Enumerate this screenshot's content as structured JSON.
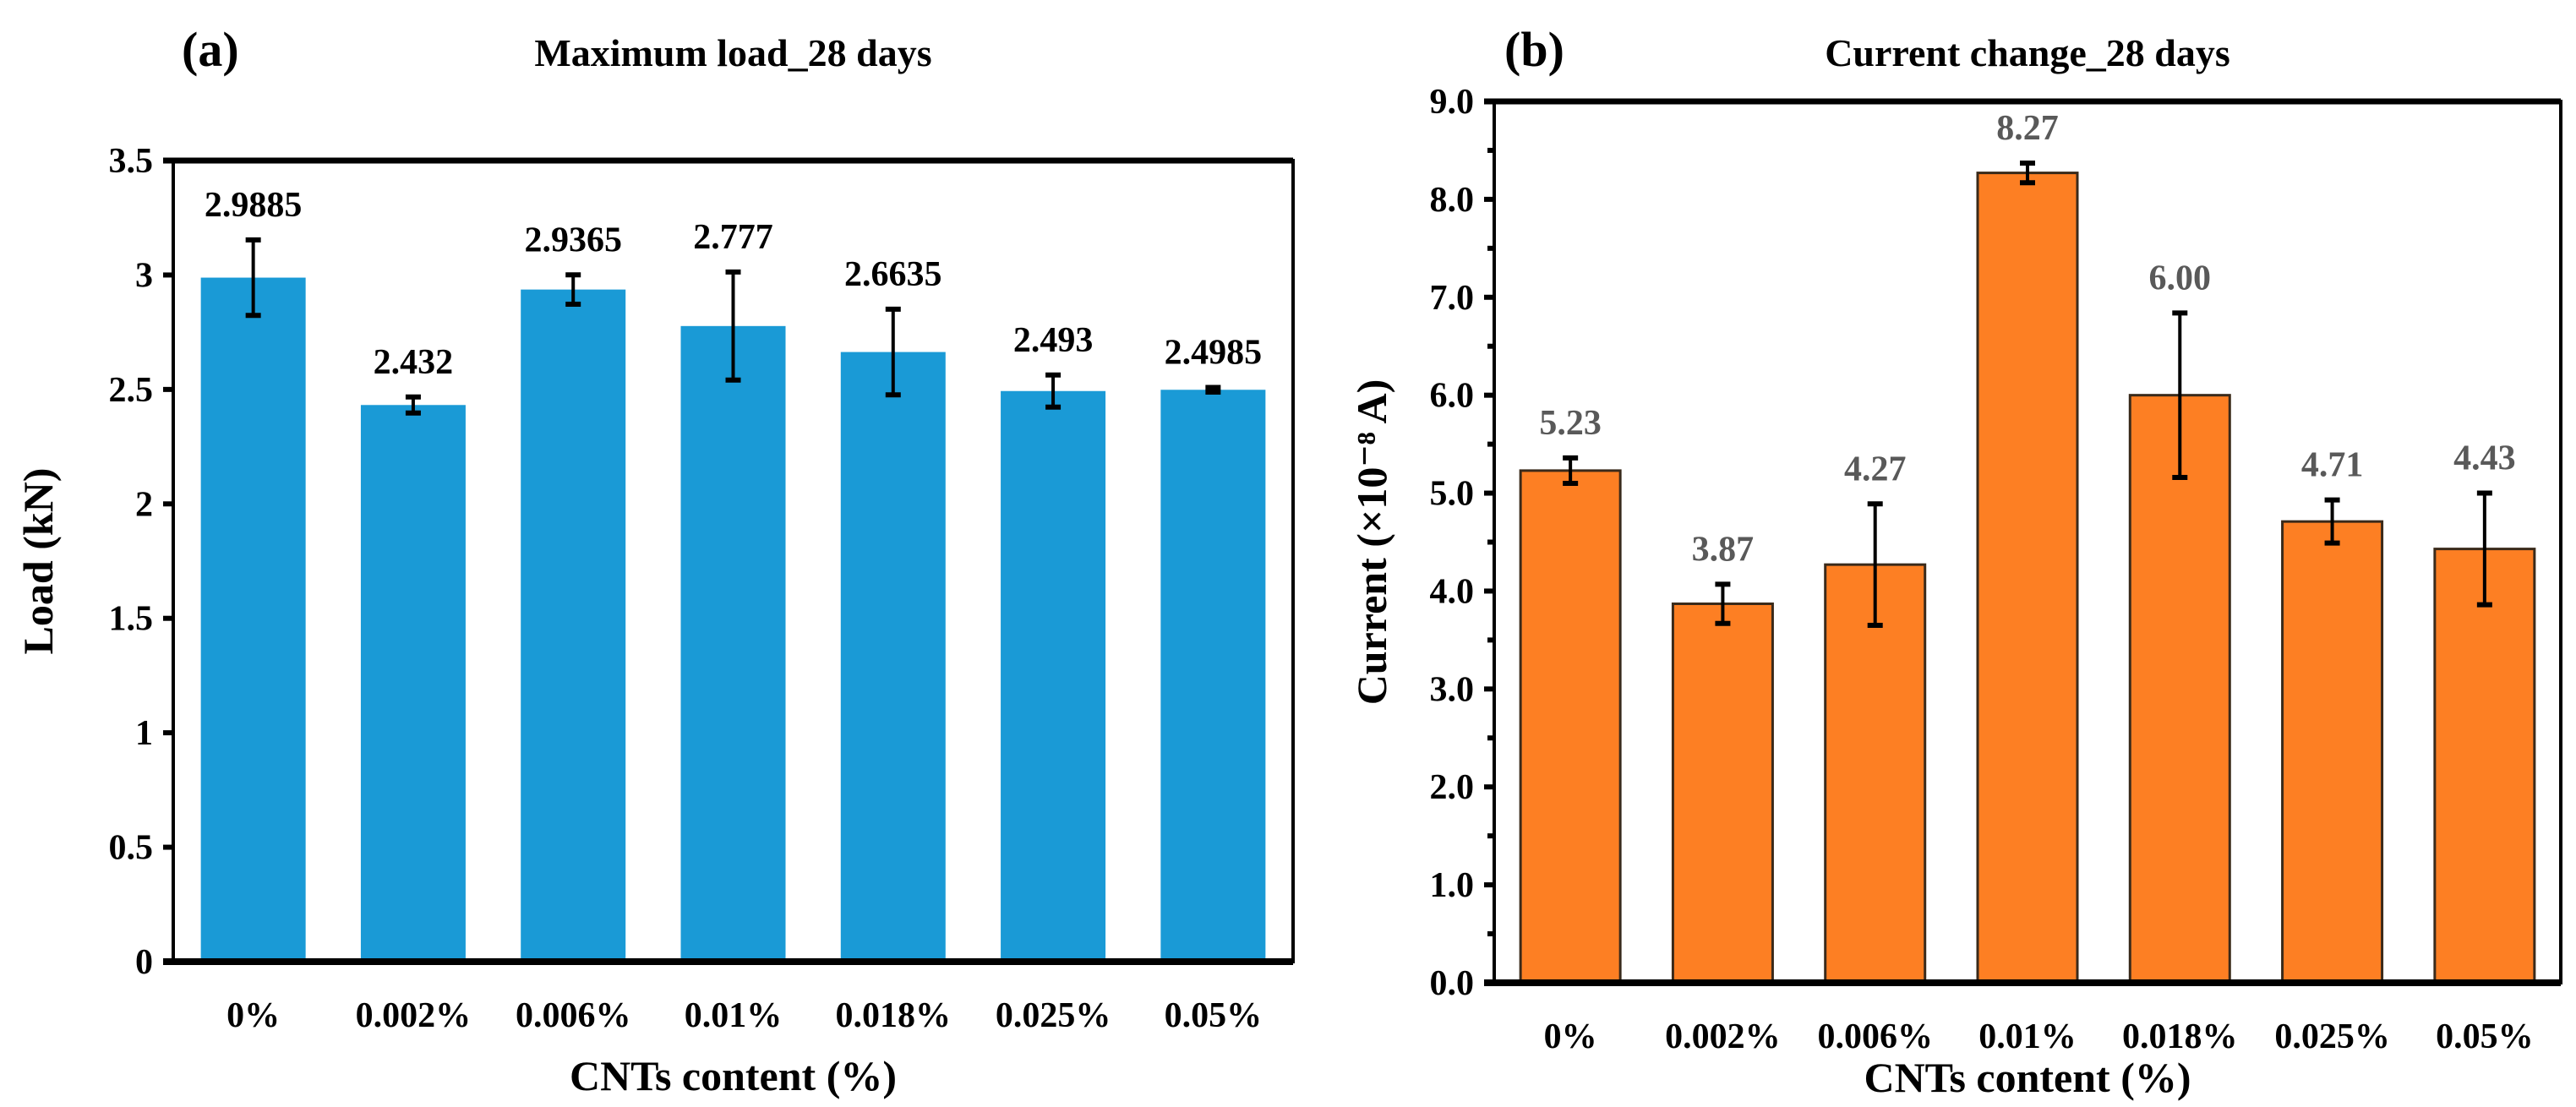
{
  "chart_data": [
    {
      "type": "bar",
      "panel_label": "(a)",
      "title": "Maximum load_28 days",
      "xlabel": "CNTs content (%)",
      "ylabel": "Load (kN)",
      "categories": [
        "0%",
        "0.002%",
        "0.006%",
        "0.01%",
        "0.018%",
        "0.025%",
        "0.05%"
      ],
      "values": [
        2.9885,
        2.432,
        2.9365,
        2.777,
        2.6635,
        2.493,
        2.4985
      ],
      "data_labels": [
        "2.9885",
        "2.432",
        "2.9365",
        "2.777",
        "2.6635",
        "2.493",
        "2.4985"
      ],
      "errors": [
        0.165,
        0.035,
        0.064,
        0.236,
        0.187,
        0.07,
        0.01
      ],
      "ylim": [
        0,
        3.5
      ],
      "yticks": [
        "0",
        "0.5",
        "1",
        "1.5",
        "2",
        "2.5",
        "3",
        "3.5"
      ],
      "ytick_values": [
        0,
        0.5,
        1,
        1.5,
        2,
        2.5,
        3,
        3.5
      ],
      "minor_ticks": false,
      "bar_color": "#1a9ad6",
      "bar_edge": "none",
      "label_color": "#000000",
      "grid": false,
      "legend": "none"
    },
    {
      "type": "bar",
      "panel_label": "(b)",
      "title": "Current change_28 days",
      "xlabel": "CNTs content (%)",
      "ylabel": "Current (×10⁻⁸ A)",
      "categories": [
        "0%",
        "0.002%",
        "0.006%",
        "0.01%",
        "0.018%",
        "0.025%",
        "0.05%"
      ],
      "values": [
        5.23,
        3.87,
        4.27,
        8.27,
        6.0,
        4.71,
        4.43
      ],
      "data_labels": [
        "5.23",
        "3.87",
        "4.27",
        "8.27",
        "6.00",
        "4.71",
        "4.43"
      ],
      "errors": [
        0.13,
        0.2,
        0.62,
        0.1,
        0.84,
        0.22,
        0.57
      ],
      "ylim": [
        0,
        9
      ],
      "yticks": [
        "0.0",
        "1.0",
        "2.0",
        "3.0",
        "4.0",
        "5.0",
        "6.0",
        "7.0",
        "8.0",
        "9.0"
      ],
      "ytick_values": [
        0,
        1,
        2,
        3,
        4,
        5,
        6,
        7,
        8,
        9
      ],
      "minor_ticks": true,
      "bar_color": "#fd7f23",
      "bar_edge": "#3a2a1a",
      "label_color": "#595959",
      "grid": false,
      "legend": "none"
    }
  ]
}
